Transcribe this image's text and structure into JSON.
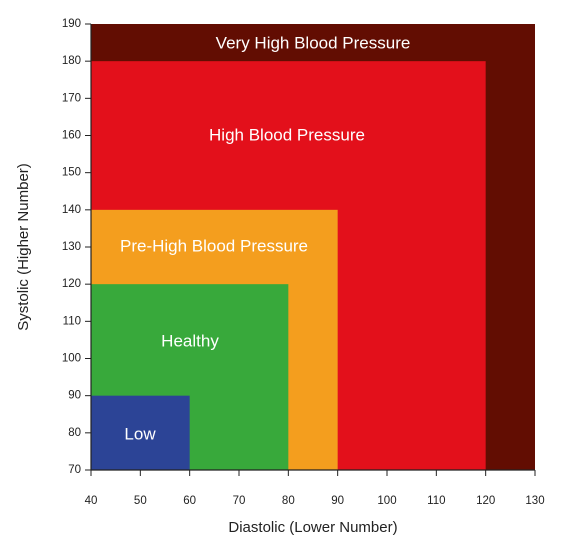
{
  "chart_data": {
    "type": "area",
    "xlabel": "Diastolic (Lower Number)",
    "ylabel": "Systolic (Higher Number)",
    "xlim": [
      40,
      130
    ],
    "ylim": [
      70,
      190
    ],
    "x_ticks": [
      40,
      50,
      60,
      70,
      80,
      90,
      100,
      110,
      120,
      130
    ],
    "y_ticks": [
      70,
      80,
      90,
      100,
      110,
      120,
      130,
      140,
      150,
      160,
      170,
      180,
      190
    ],
    "grid": false,
    "zones": [
      {
        "name": "Very High Blood Pressure",
        "x_max": 130,
        "y_max": 190,
        "color": "#620d02"
      },
      {
        "name": "High Blood Pressure",
        "x_max": 120,
        "y_max": 180,
        "color": "#e3101b"
      },
      {
        "name": "Pre-High Blood Pressure",
        "x_max": 90,
        "y_max": 140,
        "color": "#f49e1e"
      },
      {
        "name": "Healthy",
        "x_max": 80,
        "y_max": 120,
        "color": "#38a93b"
      },
      {
        "name": "Low",
        "x_max": 60,
        "y_max": 90,
        "color": "#2c4496"
      }
    ]
  }
}
